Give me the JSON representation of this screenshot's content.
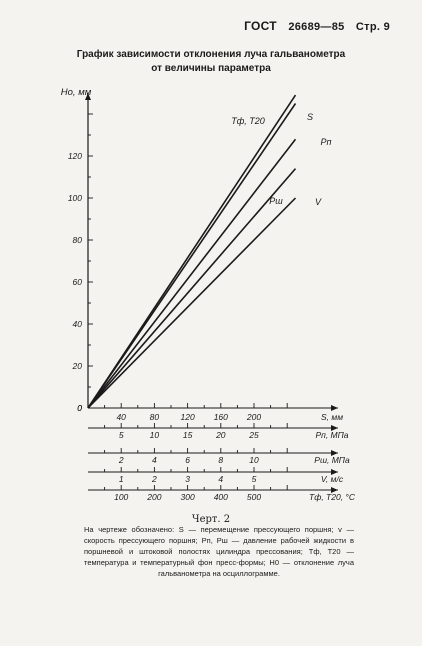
{
  "header": {
    "gost": "ГОСТ",
    "number": "26689—85",
    "page": "Стр. 9"
  },
  "figure_title": [
    "График зависимости отклонения луча гальванометра",
    "от величины параметра"
  ],
  "chart_data": {
    "type": "line",
    "ylabel": "Hо, мм",
    "ylim": [
      0,
      150
    ],
    "yticks": [
      0,
      20,
      40,
      60,
      80,
      100,
      120
    ],
    "grid": false,
    "axes": [
      {
        "label": "S, мм",
        "ticks": [
          40,
          80,
          120,
          160,
          200
        ]
      },
      {
        "label": "Pп, МПа",
        "ticks": [
          5,
          10,
          15,
          20,
          25
        ]
      },
      {
        "label": "Pш, МПа",
        "ticks": [
          2,
          4,
          6,
          8,
          10
        ]
      },
      {
        "label": "V, м/с",
        "ticks": [
          1,
          2,
          3,
          4,
          5
        ]
      },
      {
        "label": "Tф, T20, °C",
        "ticks": [
          100,
          200,
          300,
          400,
          500
        ]
      }
    ],
    "series": [
      {
        "name": "Tф, T20",
        "points": [
          [
            0,
            0
          ],
          [
            250,
            149
          ]
        ]
      },
      {
        "name": "S",
        "points": [
          [
            0,
            0
          ],
          [
            250,
            145
          ]
        ]
      },
      {
        "name": "Pп",
        "points": [
          [
            0,
            0
          ],
          [
            250,
            128
          ]
        ]
      },
      {
        "name": "Pш",
        "points": [
          [
            0,
            0
          ],
          [
            250,
            114
          ]
        ]
      },
      {
        "name": "V",
        "points": [
          [
            0,
            0
          ],
          [
            250,
            100
          ]
        ]
      }
    ]
  },
  "caption": "Черт. 2",
  "note": "На чертеже обозначено: S — перемещение прессующего поршня; v — скорость прессующего поршня; Pп, Pш — давление рабочей жидкости в поршневой и штоковой полостях цилиндра прессования; Tф, T20 — температура и температурный фон пресс-формы; H0 — отклонение луча гальванометра на осциллограмме."
}
